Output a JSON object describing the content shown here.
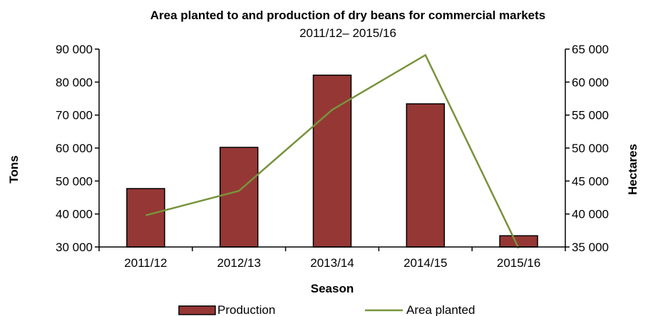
{
  "chart_data": {
    "type": "bar",
    "title": "Area planted to and production of dry beans for commercial markets",
    "subtitle": "2011/12– 2015/16",
    "xlabel": "Season",
    "ylabel": "Tons",
    "y2label": "Hectares",
    "categories": [
      "2011/12",
      "2012/13",
      "2013/14",
      "2014/15",
      "2015/16"
    ],
    "ylim": [
      30000,
      90000
    ],
    "y2lim": [
      35000,
      65000
    ],
    "yticks": [
      "30 000",
      "40 000",
      "50 000",
      "60 000",
      "70 000",
      "80 000",
      "90 000"
    ],
    "y2ticks": [
      "35 000",
      "40 000",
      "45 000",
      "50 000",
      "55 000",
      "60 000",
      "65 000"
    ],
    "series": [
      {
        "name": "Production",
        "type": "bar",
        "axis": "left",
        "values": [
          47700,
          60200,
          82100,
          73400,
          33400
        ],
        "color": "#953735"
      },
      {
        "name": "Area planted",
        "type": "line",
        "axis": "right",
        "values": [
          39800,
          43500,
          55800,
          64100,
          34800
        ],
        "color": "#77933C"
      }
    ],
    "legend_position": "bottom",
    "grid": false
  }
}
